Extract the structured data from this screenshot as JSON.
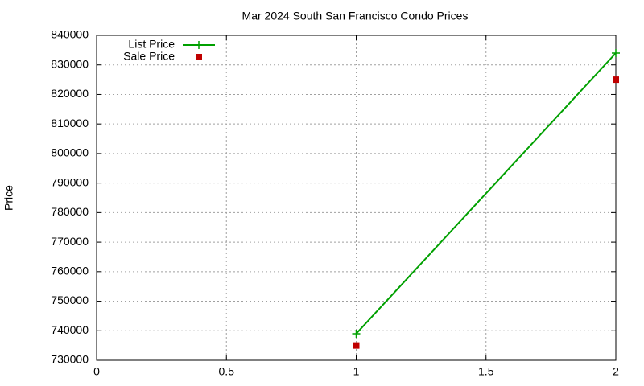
{
  "chart_data": {
    "type": "line",
    "title": "Mar 2024 South San Francisco Condo Prices",
    "y_label": "Price",
    "series": [
      {
        "name": "List Price",
        "color": "#00a000",
        "mode": "linespoints",
        "x": [
          1,
          2
        ],
        "values": [
          739000,
          834000
        ]
      },
      {
        "name": "Sale Price",
        "color": "#c00000",
        "mode": "points",
        "x": [
          1,
          2
        ],
        "values": [
          735000,
          825000
        ]
      }
    ],
    "xlim": [
      0,
      2
    ],
    "xticks": [
      0,
      0.5,
      1,
      1.5,
      2
    ],
    "ylim": [
      730000,
      840000
    ],
    "yticks": [
      730000,
      740000,
      750000,
      760000,
      770000,
      780000,
      790000,
      800000,
      810000,
      820000,
      830000,
      840000
    ],
    "grid": true,
    "legend": "top-left"
  }
}
